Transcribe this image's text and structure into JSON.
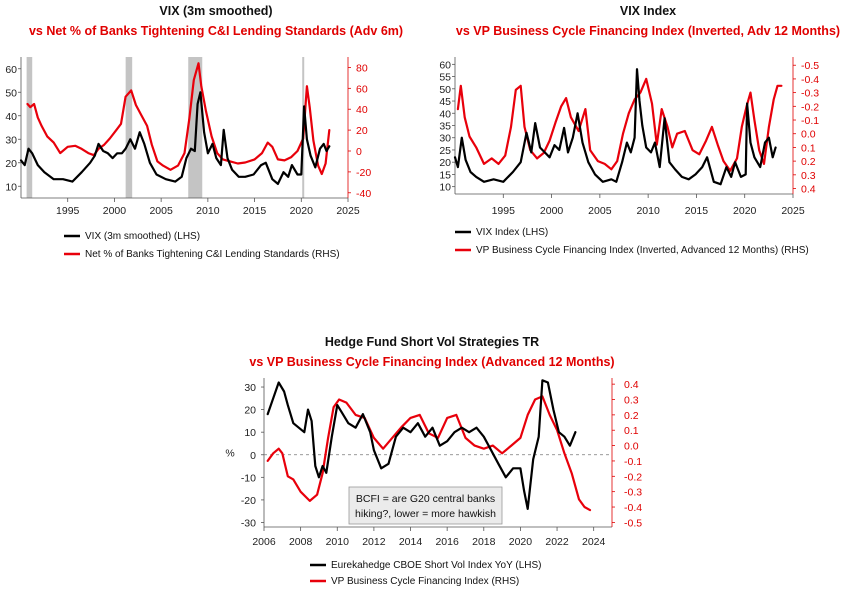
{
  "colors": {
    "lhs": "#000000",
    "rhs": "#e8000b",
    "recession": "#c4c4c4",
    "axis_right": "#e00000"
  },
  "chart_data": [
    {
      "type": "line",
      "title": "VIX (3m smoothed)",
      "subtitle": "vs Net % of Banks Tightening C&I Lending Standards (Adv 6m)",
      "xlim": [
        1990,
        2025
      ],
      "x_ticks": [
        "1995",
        "2000",
        "2005",
        "2010",
        "2015",
        "2020",
        "2025"
      ],
      "ylim_left": [
        5,
        65
      ],
      "y_ticks_left": [
        "10",
        "20",
        "30",
        "40",
        "50",
        "60"
      ],
      "ylim_right": [
        -45,
        90
      ],
      "y_ticks_right": [
        "-40",
        "-20",
        "0",
        "20",
        "40",
        "60",
        "80"
      ],
      "recessions": [
        [
          1990.6,
          1991.2
        ],
        [
          2001.2,
          2001.9
        ],
        [
          2007.9,
          2009.4
        ],
        [
          2020.1,
          2020.3
        ]
      ],
      "series": [
        {
          "name": "VIX (3m smoothed) (LHS)",
          "axis": "left",
          "x": [
            1990,
            1990.4,
            1990.8,
            1991.2,
            1991.8,
            1992.5,
            1993.5,
            1994.5,
            1995.5,
            1996.5,
            1997.4,
            1997.9,
            1998.3,
            1998.8,
            1999.3,
            1999.8,
            2000.3,
            2000.8,
            2001.2,
            2001.7,
            2002.2,
            2002.7,
            2003.2,
            2003.8,
            2004.5,
            2005.5,
            2006.5,
            2007.2,
            2007.7,
            2008.2,
            2008.6,
            2008.9,
            2009.2,
            2009.6,
            2010.0,
            2010.5,
            2010.9,
            2011.4,
            2011.7,
            2012.1,
            2012.6,
            2013.3,
            2014.0,
            2014.9,
            2015.7,
            2016.2,
            2016.9,
            2017.5,
            2018.1,
            2018.6,
            2019.0,
            2019.6,
            2020.0,
            2020.3,
            2020.6,
            2021.0,
            2021.5,
            2022.0,
            2022.4,
            2022.7,
            2023.0
          ],
          "values": [
            21,
            19,
            26,
            24,
            19,
            16,
            13,
            13,
            12,
            16,
            20,
            23,
            28,
            25,
            24,
            22,
            24,
            24,
            26,
            30,
            26,
            33,
            28,
            20,
            15,
            13,
            12,
            14,
            22,
            26,
            25,
            45,
            50,
            33,
            24,
            28,
            22,
            19,
            34,
            22,
            17,
            14,
            14,
            15,
            19,
            20,
            13,
            11,
            16,
            14,
            19,
            15,
            15,
            44,
            30,
            23,
            18,
            26,
            28,
            25,
            27
          ]
        },
        {
          "name": "Net % of Banks Tightening C&I Lending Standards (RHS)",
          "axis": "right",
          "x": [
            1990.7,
            1991.0,
            1991.4,
            1991.8,
            1992.2,
            1992.8,
            1993.5,
            1994.2,
            1995.0,
            1995.8,
            1996.5,
            1997.2,
            1997.8,
            1998.3,
            1998.9,
            1999.5,
            2000.2,
            2000.7,
            2001.2,
            2001.8,
            2002.3,
            2002.9,
            2003.5,
            2004.0,
            2004.6,
            2005.2,
            2006.0,
            2006.8,
            2007.5,
            2008.0,
            2008.5,
            2009.0,
            2009.3,
            2009.8,
            2010.4,
            2011.0,
            2011.6,
            2012.4,
            2013.2,
            2014.0,
            2015.0,
            2015.8,
            2016.4,
            2016.9,
            2017.5,
            2018.2,
            2018.9,
            2019.6,
            2020.2,
            2020.6,
            2020.9,
            2021.3,
            2021.8,
            2022.2,
            2022.6,
            2023.0
          ],
          "values": [
            45,
            42,
            45,
            32,
            24,
            14,
            8,
            -2,
            4,
            5,
            2,
            -2,
            -4,
            2,
            6,
            12,
            20,
            26,
            52,
            58,
            44,
            34,
            24,
            6,
            -10,
            -14,
            -18,
            -14,
            -2,
            30,
            68,
            84,
            62,
            38,
            14,
            -2,
            -8,
            -10,
            -12,
            -11,
            -8,
            -2,
            8,
            4,
            -8,
            -9,
            -6,
            0,
            12,
            62,
            42,
            10,
            -14,
            -22,
            -12,
            20
          ]
        }
      ]
    },
    {
      "type": "line",
      "title": "VIX Index",
      "subtitle": "vs VP Business Cycle Financing Index (Inverted, Adv 12 Months)",
      "xlim": [
        1990,
        2025
      ],
      "x_ticks": [
        "1995",
        "2000",
        "2005",
        "2010",
        "2015",
        "2020",
        "2025"
      ],
      "ylim_left": [
        7,
        63
      ],
      "y_ticks_left": [
        "10",
        "15",
        "20",
        "25",
        "30",
        "35",
        "40",
        "45",
        "50",
        "55",
        "60"
      ],
      "ylim_right": [
        0.44,
        -0.56
      ],
      "y_ticks_right": [
        "-0.5",
        "-0.4",
        "-0.3",
        "-0.2",
        "-0.1",
        "0.0",
        "0.1",
        "0.2",
        "0.3",
        "0.4"
      ],
      "series": [
        {
          "name": "VIX Index (LHS)",
          "axis": "left",
          "x": [
            1990.0,
            1990.3,
            1990.7,
            1991.1,
            1991.6,
            1992.2,
            1993.0,
            1994.0,
            1995.0,
            1996.0,
            1996.8,
            1997.4,
            1997.9,
            1998.3,
            1998.8,
            1999.3,
            1999.8,
            2000.3,
            2000.8,
            2001.3,
            2001.7,
            2002.2,
            2002.7,
            2003.2,
            2003.8,
            2004.5,
            2005.3,
            2006.2,
            2006.7,
            2007.3,
            2007.8,
            2008.2,
            2008.6,
            2008.85,
            2009.1,
            2009.4,
            2009.8,
            2010.3,
            2010.7,
            2011.2,
            2011.7,
            2012.2,
            2012.8,
            2013.5,
            2014.2,
            2014.9,
            2015.6,
            2016.1,
            2016.8,
            2017.5,
            2018.1,
            2018.6,
            2019.0,
            2019.6,
            2020.1,
            2020.25,
            2020.6,
            2021.0,
            2021.6,
            2022.1,
            2022.5,
            2022.9,
            2023.2
          ],
          "values": [
            22,
            18,
            30,
            21,
            16,
            14,
            12,
            13,
            12,
            16,
            20,
            32,
            24,
            36,
            26,
            24,
            22,
            27,
            25,
            34,
            24,
            30,
            40,
            28,
            20,
            15,
            12,
            13,
            12,
            20,
            28,
            24,
            30,
            58,
            45,
            35,
            26,
            24,
            28,
            18,
            38,
            20,
            17,
            14,
            13,
            15,
            18,
            22,
            12,
            11,
            18,
            14,
            20,
            14,
            15,
            44,
            28,
            22,
            18,
            28,
            30,
            22,
            26
          ]
        },
        {
          "name": "VP Business Cycle Financing Index (Inverted, Advanced 12 Months) (RHS)",
          "axis": "right",
          "x": [
            1990.3,
            1990.6,
            1991.0,
            1991.5,
            1992.2,
            1993.0,
            1993.8,
            1994.5,
            1995.2,
            1995.8,
            1996.3,
            1996.8,
            1997.2,
            1997.8,
            1998.5,
            1999.2,
            1999.8,
            2000.4,
            2001.0,
            2001.5,
            2002.0,
            2002.8,
            2003.5,
            2004.0,
            2004.8,
            2005.5,
            2006.2,
            2006.8,
            2007.4,
            2008.0,
            2008.6,
            2009.2,
            2009.8,
            2010.4,
            2010.9,
            2011.4,
            2012.0,
            2012.5,
            2013.0,
            2013.8,
            2014.6,
            2015.3,
            2016.0,
            2016.6,
            2017.2,
            2017.8,
            2018.5,
            2019.2,
            2019.7,
            2020.2,
            2020.6,
            2021.0,
            2021.5,
            2022.0,
            2022.5,
            2023.0,
            2023.4,
            2023.8
          ],
          "values": [
            -0.18,
            -0.35,
            -0.12,
            0.02,
            0.1,
            0.22,
            0.18,
            0.22,
            0.16,
            -0.05,
            -0.32,
            -0.35,
            -0.05,
            0.12,
            0.18,
            0.14,
            0.05,
            -0.08,
            -0.2,
            -0.26,
            -0.12,
            -0.02,
            -0.18,
            0.12,
            0.2,
            0.22,
            0.26,
            0.2,
            0.0,
            -0.15,
            -0.25,
            -0.3,
            -0.4,
            -0.22,
            0.08,
            -0.18,
            -0.05,
            0.1,
            0.0,
            -0.02,
            0.12,
            0.15,
            0.05,
            -0.05,
            0.08,
            0.2,
            0.27,
            0.18,
            -0.05,
            -0.2,
            -0.3,
            -0.1,
            0.12,
            0.22,
            -0.05,
            -0.25,
            -0.35,
            -0.35
          ]
        }
      ]
    },
    {
      "type": "line",
      "title": "Hedge Fund Short Vol Strategies TR",
      "subtitle": "vs VP Business Cycle Financing Index (Advanced 12 Months)",
      "ylabel": "%",
      "xlim": [
        2006,
        2025
      ],
      "x_ticks": [
        "2006",
        "2008",
        "2010",
        "2012",
        "2014",
        "2016",
        "2018",
        "2020",
        "2022",
        "2024"
      ],
      "ylim_left": [
        -32,
        34
      ],
      "y_ticks_left": [
        "30",
        "20",
        "10",
        "0",
        "-10",
        "-20",
        "-30"
      ],
      "ylim_right": [
        -0.53,
        0.44
      ],
      "y_ticks_right": [
        "0.4",
        "0.3",
        "0.2",
        "0.1",
        "0.0",
        "-0.1",
        "-0.2",
        "-0.3",
        "-0.4",
        "-0.5"
      ],
      "annotation": "BCFI = are G20 central banks hiking?, lower = more hawkish",
      "annotation_lines": [
        "BCFI = are G20 central banks",
        "hiking?, lower = more hawkish"
      ],
      "series": [
        {
          "name": "Eurekahedge CBOE Short Vol Index YoY (LHS)",
          "axis": "left",
          "x": [
            2006.2,
            2006.5,
            2006.8,
            2007.1,
            2007.3,
            2007.6,
            2007.9,
            2008.2,
            2008.4,
            2008.6,
            2008.8,
            2009.0,
            2009.2,
            2009.4,
            2009.7,
            2010.0,
            2010.3,
            2010.6,
            2011.0,
            2011.4,
            2011.8,
            2012.0,
            2012.4,
            2012.8,
            2013.2,
            2013.6,
            2014.0,
            2014.4,
            2014.8,
            2015.2,
            2015.6,
            2016.0,
            2016.4,
            2016.8,
            2017.2,
            2017.6,
            2018.0,
            2018.4,
            2018.8,
            2019.2,
            2019.6,
            2020.0,
            2020.2,
            2020.4,
            2020.7,
            2021.0,
            2021.2,
            2021.5,
            2021.8,
            2022.1,
            2022.4,
            2022.7,
            2023.0
          ],
          "values": [
            18,
            25,
            32,
            28,
            22,
            14,
            12,
            10,
            20,
            15,
            -5,
            -10,
            -5,
            -8,
            8,
            22,
            18,
            14,
            12,
            18,
            10,
            2,
            -6,
            -4,
            8,
            12,
            10,
            14,
            8,
            12,
            4,
            6,
            10,
            12,
            10,
            12,
            8,
            2,
            -4,
            -10,
            -6,
            -6,
            -16,
            -24,
            -2,
            8,
            33,
            32,
            20,
            10,
            8,
            4,
            10
          ]
        },
        {
          "name": "VP Business Cycle Financing Index (RHS)",
          "axis": "right",
          "x": [
            2006.2,
            2006.5,
            2006.8,
            2007.0,
            2007.3,
            2007.6,
            2008.0,
            2008.5,
            2008.9,
            2009.2,
            2009.5,
            2009.8,
            2010.1,
            2010.5,
            2011.0,
            2011.5,
            2012.0,
            2012.5,
            2013.0,
            2013.5,
            2014.0,
            2014.5,
            2015.0,
            2015.5,
            2016.0,
            2016.5,
            2017.0,
            2017.5,
            2018.0,
            2018.5,
            2019.0,
            2019.5,
            2020.0,
            2020.4,
            2020.8,
            2021.2,
            2021.6,
            2022.0,
            2022.4,
            2022.8,
            2023.2,
            2023.5,
            2023.8
          ],
          "values": [
            -0.1,
            -0.05,
            -0.02,
            -0.05,
            -0.2,
            -0.22,
            -0.3,
            -0.36,
            -0.32,
            -0.18,
            0.05,
            0.25,
            0.3,
            0.28,
            0.2,
            0.18,
            0.05,
            -0.02,
            0.05,
            0.12,
            0.18,
            0.2,
            0.08,
            0.05,
            0.18,
            0.2,
            0.05,
            0.0,
            -0.02,
            0.0,
            -0.05,
            0.0,
            0.05,
            0.2,
            0.3,
            0.32,
            0.2,
            0.1,
            -0.05,
            -0.18,
            -0.35,
            -0.4,
            -0.42
          ]
        }
      ]
    }
  ]
}
